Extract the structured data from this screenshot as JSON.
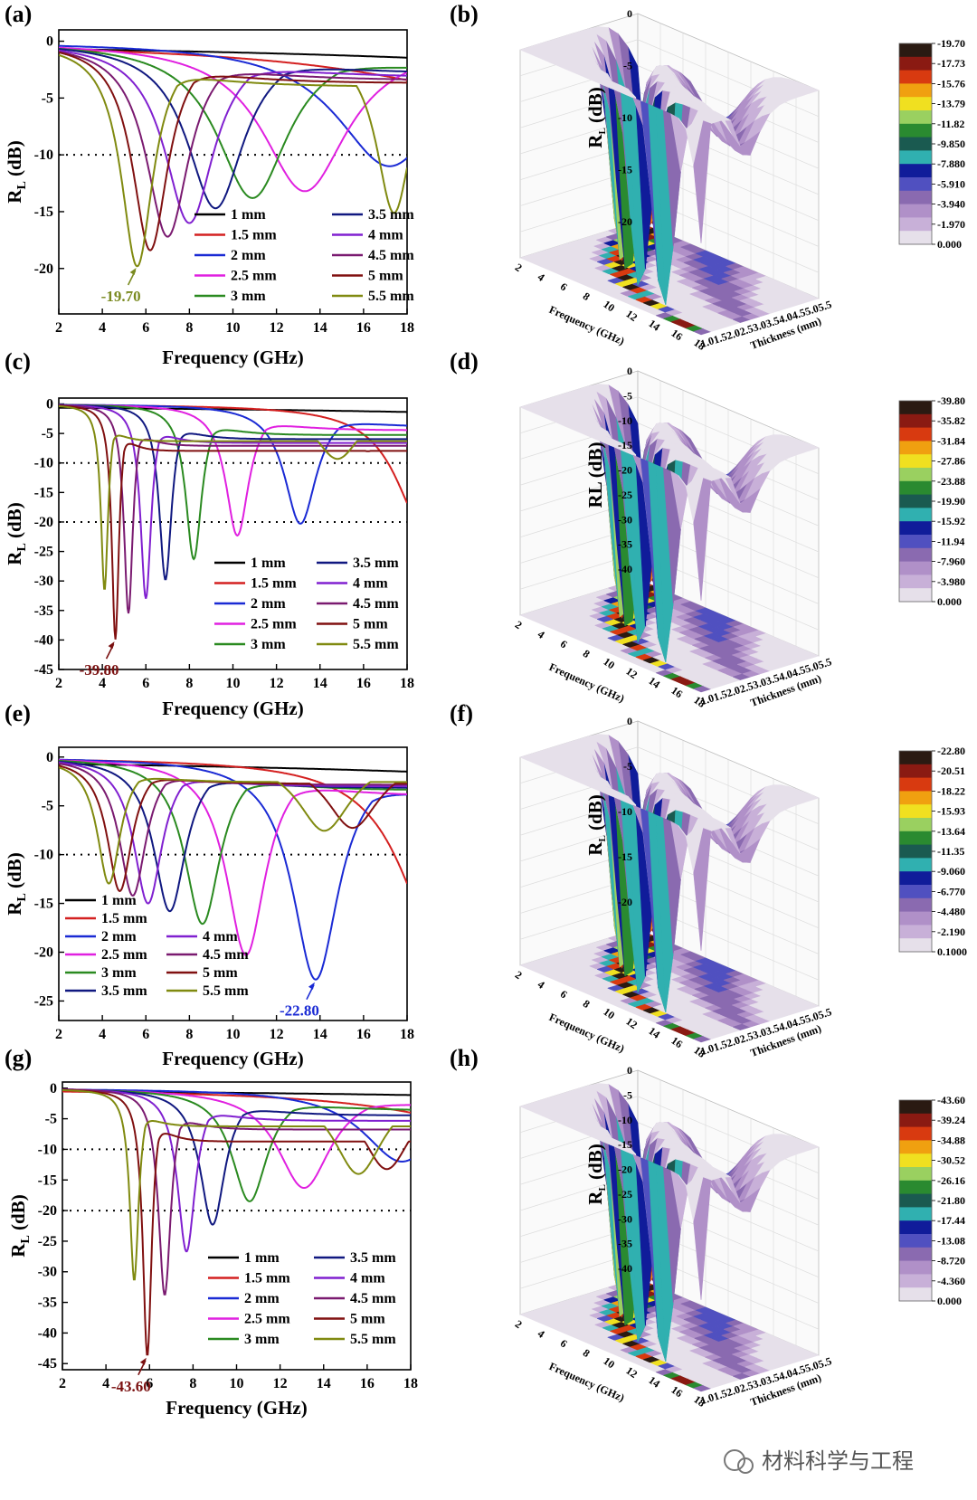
{
  "watermark": "材料科学与工程",
  "chart_data": [
    {
      "panel": "(a)",
      "type": "line",
      "xlabel": "Frequency (GHz)",
      "ylabel": "R_L (dB)",
      "xlim": [
        2,
        18
      ],
      "ylim": [
        -24,
        1
      ],
      "xticks": [
        2,
        4,
        6,
        8,
        10,
        12,
        14,
        16,
        18
      ],
      "yticks": [
        0,
        -5,
        -10,
        -15,
        -20
      ],
      "reference_lines": [
        -10
      ],
      "annotation": {
        "text": "-19.70",
        "x": 5.6,
        "y": -19.7,
        "color": "#7a8a20"
      },
      "legend_columns": 2,
      "series": [
        {
          "name": "1 mm",
          "color": "#000000",
          "dip_x": 40,
          "dip_y": -3.2,
          "width": 20
        },
        {
          "name": "1.5 mm",
          "color": "#d42020",
          "dip_x": 25,
          "dip_y": -5.5,
          "width": 9
        },
        {
          "name": "2 mm",
          "color": "#1a2ad4",
          "dip_x": 17.2,
          "dip_y": -11.0,
          "width": 3.0
        },
        {
          "name": "2.5 mm",
          "color": "#e020e0",
          "dip_x": 13.3,
          "dip_y": -13.2,
          "width": 2.4
        },
        {
          "name": "3 mm",
          "color": "#2a8a20",
          "dip_x": 10.9,
          "dip_y": -13.8,
          "width": 2.0
        },
        {
          "name": "3.5 mm",
          "color": "#101880",
          "dip_x": 9.2,
          "dip_y": -14.7,
          "width": 1.6
        },
        {
          "name": "4 mm",
          "color": "#8020d0",
          "dip_x": 8.0,
          "dip_y": -16.0,
          "width": 1.4
        },
        {
          "name": "4.5 mm",
          "color": "#7a1a70",
          "dip_x": 7.0,
          "dip_y": -17.2,
          "width": 1.2
        },
        {
          "name": "5 mm",
          "color": "#801010",
          "dip_x": 6.2,
          "dip_y": -18.4,
          "width": 1.0
        },
        {
          "name": "5.5 mm",
          "color": "#808a10",
          "dip_x": 5.6,
          "dip_y": -19.7,
          "width": 0.9,
          "dip2_x": 17.4,
          "dip2_y": -15.0,
          "width2": 1.0
        }
      ]
    },
    {
      "panel": "(c)",
      "type": "line",
      "xlabel": "Frequency (GHz)",
      "ylabel": "R_L (dB)",
      "xlim": [
        2,
        18
      ],
      "ylim": [
        -45,
        1
      ],
      "xticks": [
        2,
        4,
        6,
        8,
        10,
        12,
        14,
        16,
        18
      ],
      "yticks": [
        0,
        -5,
        -10,
        -15,
        -20,
        -25,
        -30,
        -35,
        -40,
        -45
      ],
      "reference_lines": [
        -10,
        -20
      ],
      "annotation": {
        "text": "-39.80",
        "x": 4.6,
        "y": -39.8,
        "color": "#7a1010"
      },
      "legend_columns": 2,
      "series": [
        {
          "name": "1 mm",
          "color": "#000000",
          "dip_x": 40,
          "dip_y": -3,
          "width": 20
        },
        {
          "name": "1.5 mm",
          "color": "#d42020",
          "dip_x": 18.8,
          "dip_y": -21,
          "width": 1.6
        },
        {
          "name": "2 mm",
          "color": "#1a2ad4",
          "dip_x": 13.1,
          "dip_y": -20.3,
          "width": 0.9
        },
        {
          "name": "2.5 mm",
          "color": "#e020e0",
          "dip_x": 10.2,
          "dip_y": -22.3,
          "width": 0.65
        },
        {
          "name": "3 mm",
          "color": "#2a8a20",
          "dip_x": 8.2,
          "dip_y": -26.3,
          "width": 0.45
        },
        {
          "name": "3.5 mm",
          "color": "#101880",
          "dip_x": 6.9,
          "dip_y": -29.8,
          "width": 0.35
        },
        {
          "name": "4 mm",
          "color": "#8020d0",
          "dip_x": 6.0,
          "dip_y": -33.0,
          "width": 0.3
        },
        {
          "name": "4.5 mm",
          "color": "#7a1a70",
          "dip_x": 5.2,
          "dip_y": -35.5,
          "width": 0.25
        },
        {
          "name": "5 mm",
          "color": "#801010",
          "dip_x": 4.6,
          "dip_y": -39.8,
          "width": 0.2,
          "dip2_x": 16.2,
          "dip2_y": -8.0,
          "width2": 1.4
        },
        {
          "name": "5.5 mm",
          "color": "#808a10",
          "dip_x": 4.1,
          "dip_y": -31.5,
          "width": 0.2,
          "dip2_x": 14.8,
          "dip2_y": -9.3,
          "width2": 1.3
        }
      ]
    },
    {
      "panel": "(e)",
      "type": "line",
      "xlabel": "Frequency (GHz)",
      "ylabel": "R_L (dB)",
      "xlim": [
        2,
        18
      ],
      "ylim": [
        -27,
        1
      ],
      "xticks": [
        2,
        4,
        6,
        8,
        10,
        12,
        14,
        16,
        18
      ],
      "yticks": [
        0,
        -5,
        -10,
        -15,
        -20,
        -25
      ],
      "reference_lines": [
        -10
      ],
      "annotation": {
        "text": "-22.80",
        "x": 13.8,
        "y": -22.8,
        "color": "#1a2ad4"
      },
      "legend_columns": 2,
      "series": [
        {
          "name": "1 mm",
          "color": "#000000",
          "dip_x": 40,
          "dip_y": -3.3,
          "width": 20
        },
        {
          "name": "1.5 mm",
          "color": "#d42020",
          "dip_x": 19.5,
          "dip_y": -19,
          "width": 2.2
        },
        {
          "name": "2 mm",
          "color": "#1a2ad4",
          "dip_x": 13.8,
          "dip_y": -22.8,
          "width": 1.3
        },
        {
          "name": "2.5 mm",
          "color": "#e020e0",
          "dip_x": 10.6,
          "dip_y": -20.3,
          "width": 1.1
        },
        {
          "name": "3 mm",
          "color": "#2a8a20",
          "dip_x": 8.6,
          "dip_y": -17.1,
          "width": 1.0
        },
        {
          "name": "3.5 mm",
          "color": "#101880",
          "dip_x": 7.1,
          "dip_y": -15.8,
          "width": 0.9
        },
        {
          "name": "4 mm",
          "color": "#8020d0",
          "dip_x": 6.1,
          "dip_y": -15.0,
          "width": 0.8
        },
        {
          "name": "4.5 mm",
          "color": "#7a1a70",
          "dip_x": 5.4,
          "dip_y": -14.2,
          "width": 0.75
        },
        {
          "name": "5 mm",
          "color": "#801010",
          "dip_x": 4.8,
          "dip_y": -13.6,
          "width": 0.7,
          "dip2_x": 15.5,
          "dip2_y": -7.2,
          "width2": 1.5
        },
        {
          "name": "5.5 mm",
          "color": "#808a10",
          "dip_x": 4.3,
          "dip_y": -12.8,
          "width": 0.65,
          "dip2_x": 14.2,
          "dip2_y": -7.5,
          "width2": 1.5
        }
      ]
    },
    {
      "panel": "(g)",
      "type": "line",
      "xlabel": "Frequency (GHz)",
      "ylabel": "R_L (dB)",
      "xlim": [
        2,
        18
      ],
      "ylim": [
        -46,
        1
      ],
      "xticks": [
        2,
        4,
        6,
        8,
        10,
        12,
        14,
        16,
        18
      ],
      "yticks": [
        0,
        -5,
        -10,
        -15,
        -20,
        -25,
        -30,
        -35,
        -40,
        -45
      ],
      "reference_lines": [
        -10,
        -20
      ],
      "annotation": {
        "text": "-43.60",
        "x": 5.9,
        "y": -43.6,
        "color": "#7a1010"
      },
      "legend_columns": 2,
      "series": [
        {
          "name": "1 mm",
          "color": "#000000",
          "dip_x": 40,
          "dip_y": -2.5,
          "width": 20
        },
        {
          "name": "1.5 mm",
          "color": "#d42020",
          "dip_x": 24,
          "dip_y": -8,
          "width": 6
        },
        {
          "name": "2 mm",
          "color": "#1a2ad4",
          "dip_x": 17.6,
          "dip_y": -12.0,
          "width": 2.2
        },
        {
          "name": "2.5 mm",
          "color": "#e020e0",
          "dip_x": 13.1,
          "dip_y": -16.3,
          "width": 1.5
        },
        {
          "name": "3 mm",
          "color": "#2a8a20",
          "dip_x": 10.6,
          "dip_y": -18.5,
          "width": 1.0
        },
        {
          "name": "3.5 mm",
          "color": "#101880",
          "dip_x": 8.9,
          "dip_y": -22.3,
          "width": 0.7
        },
        {
          "name": "4 mm",
          "color": "#8020d0",
          "dip_x": 7.7,
          "dip_y": -26.7,
          "width": 0.5
        },
        {
          "name": "4.5 mm",
          "color": "#7a1a70",
          "dip_x": 6.7,
          "dip_y": -33.8,
          "width": 0.35
        },
        {
          "name": "5 mm",
          "color": "#801010",
          "dip_x": 5.9,
          "dip_y": -43.6,
          "width": 0.25,
          "dip2_x": 16.9,
          "dip2_y": -13.2,
          "width2": 1.4
        },
        {
          "name": "5.5 mm",
          "color": "#808a10",
          "dip_x": 5.3,
          "dip_y": -31.2,
          "width": 0.25,
          "dip2_x": 15.6,
          "dip2_y": -14.0,
          "width2": 1.4
        }
      ]
    },
    {
      "panel": "(b)",
      "type": "heatmap",
      "xlabel": "Frequency (GHz)",
      "ylabel": "R_L (dB)",
      "zlabel": "Thickness (mm)",
      "zlim": [
        -20,
        0
      ],
      "axis_ticks": [
        0,
        -5,
        -10,
        -15,
        -20
      ],
      "colorbar": [
        "-19.70",
        "-17.73",
        "-15.76",
        "-13.79",
        "-11.82",
        "-9.850",
        "-7.880",
        "-5.910",
        "-3.940",
        "-1.970",
        "0.000"
      ]
    },
    {
      "panel": "(d)",
      "type": "heatmap",
      "xlabel": "Frequency (GHz)",
      "ylabel": "RL (dB)",
      "zlabel": "Thickness (mm)",
      "zlim": [
        -42,
        0
      ],
      "axis_ticks": [
        0,
        -5,
        -10,
        -15,
        -20,
        -25,
        -30,
        -35,
        -40
      ],
      "colorbar": [
        "-39.80",
        "-35.82",
        "-31.84",
        "-27.86",
        "-23.88",
        "-19.90",
        "-15.92",
        "-11.94",
        "-7.960",
        "-3.980",
        "0.000"
      ]
    },
    {
      "panel": "(f)",
      "type": "heatmap",
      "xlabel": "Frequency (GHz)",
      "ylabel": "R_L (dB)",
      "zlabel": "Thickness (mm)",
      "zlim": [
        -23,
        0
      ],
      "axis_ticks": [
        0,
        -5,
        -10,
        -15,
        -20
      ],
      "colorbar": [
        "-22.80",
        "-20.51",
        "-18.22",
        "-15.93",
        "-13.64",
        "-11.35",
        "-9.060",
        "-6.770",
        "-4.480",
        "-2.190",
        "0.1000"
      ]
    },
    {
      "panel": "(h)",
      "type": "heatmap",
      "xlabel": "Frequency (GHz)",
      "ylabel": "R_L (dB)",
      "zlabel": "Thickness (mm)",
      "zlim": [
        -42,
        0
      ],
      "axis_ticks": [
        0,
        -5,
        -10,
        -15,
        -20,
        -25,
        -30,
        -35,
        -40
      ],
      "colorbar": [
        "-43.60",
        "-39.24",
        "-34.88",
        "-30.52",
        "-26.16",
        "-21.80",
        "-17.44",
        "-13.08",
        "-8.720",
        "-4.360",
        "0.000"
      ]
    }
  ],
  "surface_axis_ticks": {
    "frequency": [
      "2",
      "4",
      "6",
      "8",
      "10",
      "12",
      "14",
      "16",
      "18"
    ],
    "thickness": [
      "1.0",
      "1.5",
      "2.0",
      "2.5",
      "3.0",
      "3.5",
      "4.0",
      "4.5",
      "5.0",
      "5.5"
    ]
  },
  "colormap": [
    "#2a1a12",
    "#8a1a12",
    "#d83a10",
    "#f0a010",
    "#f0e020",
    "#9ad060",
    "#2a8a30",
    "#1a5a50",
    "#30b0b0",
    "#101c9a",
    "#5050c0",
    "#8a6ab0",
    "#b090c8",
    "#c8b0d8",
    "#e6e0ea"
  ]
}
